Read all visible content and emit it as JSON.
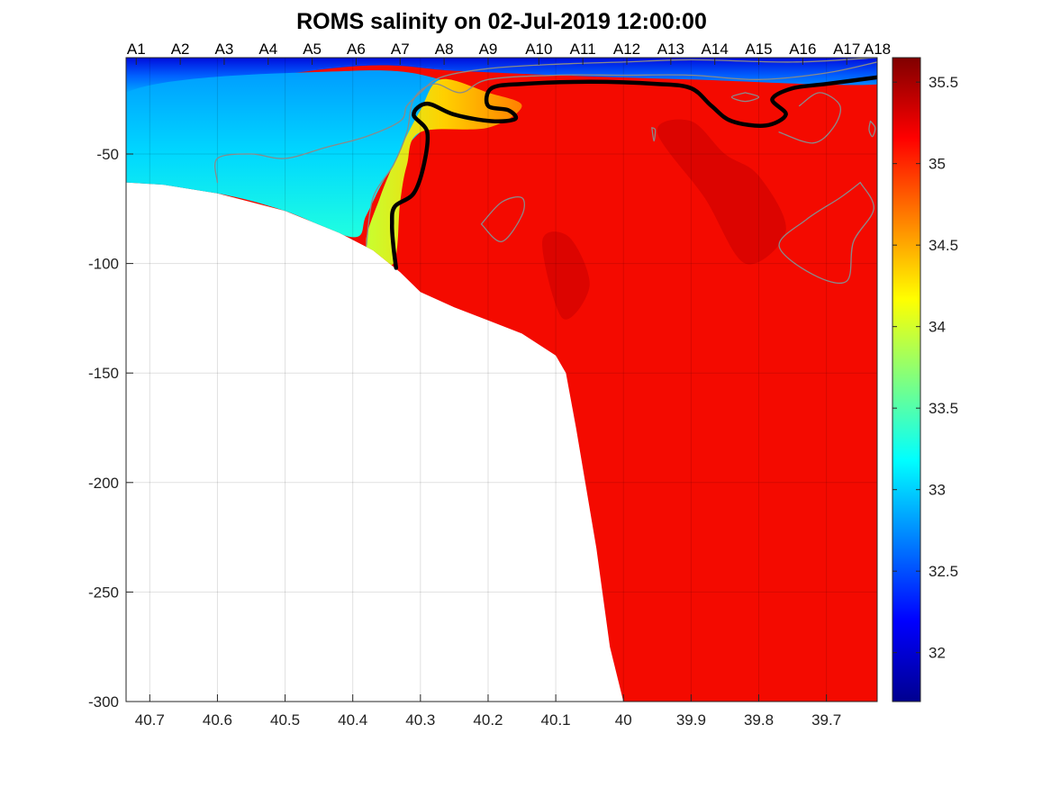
{
  "chart_data": {
    "type": "heatmap",
    "title": "ROMS salinity on 02-Jul-2019 12:00:00",
    "xlabel": "",
    "ylabel": "",
    "x_axis": {
      "min": 39.625,
      "max": 40.735,
      "reversed": true,
      "ticks": [
        40.7,
        40.6,
        40.5,
        40.4,
        40.3,
        40.2,
        40.1,
        40,
        39.9,
        39.8,
        39.7
      ],
      "tick_labels": [
        "40.7",
        "40.6",
        "40.5",
        "40.4",
        "40.3",
        "40.2",
        "40.1",
        "40",
        "39.9",
        "39.8",
        "39.7"
      ]
    },
    "y_axis": {
      "min": -300,
      "max": -6,
      "ticks": [
        -50,
        -100,
        -150,
        -200,
        -250,
        -300
      ],
      "tick_labels": [
        "-50",
        "-100",
        "-150",
        "-200",
        "-250",
        "-300"
      ]
    },
    "top_axis": {
      "labels": [
        "A1",
        "A2",
        "A3",
        "A4",
        "A5",
        "A6",
        "A7",
        "A8",
        "A9",
        "A10",
        "A11",
        "A12",
        "A13",
        "A14",
        "A15",
        "A16",
        "A17",
        "A18"
      ],
      "positions": [
        40.72,
        40.655,
        40.59,
        40.525,
        40.46,
        40.395,
        40.33,
        40.265,
        40.2,
        40.125,
        40.06,
        39.995,
        39.93,
        39.865,
        39.8,
        39.735,
        39.67,
        39.625
      ]
    },
    "colorbar": {
      "colormap": "jet",
      "min": 31.7,
      "max": 35.65,
      "ticks": [
        32,
        32.5,
        33,
        33.5,
        34,
        34.5,
        35,
        35.5
      ],
      "tick_labels": [
        "32",
        "32.5",
        "33",
        "33.5",
        "34",
        "34.5",
        "35",
        "35.5"
      ]
    },
    "grid": true,
    "bathymetry": [
      [
        40.735,
        -63
      ],
      [
        40.68,
        -64
      ],
      [
        40.6,
        -68
      ],
      [
        40.5,
        -76
      ],
      [
        40.42,
        -86
      ],
      [
        40.37,
        -94
      ],
      [
        40.33,
        -104
      ],
      [
        40.3,
        -113
      ],
      [
        40.25,
        -120
      ],
      [
        40.2,
        -126
      ],
      [
        40.15,
        -132
      ],
      [
        40.1,
        -142
      ],
      [
        40.085,
        -150
      ],
      [
        40.07,
        -175
      ],
      [
        40.04,
        -230
      ],
      [
        40.02,
        -275
      ],
      [
        40.0,
        -300
      ]
    ],
    "salinity_zones": [
      {
        "name": "fresh-surface",
        "salinity": 31.8,
        "outline": [
          [
            40.735,
            -6
          ],
          [
            40.0,
            -6
          ],
          [
            39.62,
            -6
          ],
          [
            39.62,
            -18
          ],
          [
            39.9,
            -16
          ],
          [
            40.1,
            -14
          ],
          [
            40.25,
            -12
          ],
          [
            40.4,
            -10
          ],
          [
            40.735,
            -22
          ]
        ]
      },
      {
        "name": "mid-layer",
        "salinity": 32.9,
        "outline": [
          [
            40.735,
            -22
          ],
          [
            40.4,
            -12
          ],
          [
            40.27,
            -16
          ],
          [
            40.22,
            -26
          ],
          [
            40.3,
            -40
          ],
          [
            40.35,
            -60
          ],
          [
            40.38,
            -78
          ],
          [
            40.4,
            -88
          ],
          [
            40.5,
            -76
          ],
          [
            40.6,
            -68
          ],
          [
            40.735,
            -63
          ]
        ]
      },
      {
        "name": "front",
        "salinity": 34.3,
        "outline": [
          [
            40.27,
            -16
          ],
          [
            40.2,
            -22
          ],
          [
            40.15,
            -28
          ],
          [
            40.2,
            -38
          ],
          [
            40.3,
            -40
          ],
          [
            40.32,
            -55
          ],
          [
            40.33,
            -72
          ],
          [
            40.34,
            -100
          ],
          [
            40.38,
            -92
          ],
          [
            40.36,
            -70
          ],
          [
            40.33,
            -48
          ],
          [
            40.3,
            -30
          ]
        ]
      },
      {
        "name": "saline-core",
        "salinity": 35.3
      },
      {
        "name": "max-patch",
        "salinity": 35.55,
        "outline": [
          [
            39.95,
            -40
          ],
          [
            39.9,
            -35
          ],
          [
            39.85,
            -50
          ],
          [
            39.8,
            -60
          ],
          [
            39.76,
            -85
          ],
          [
            39.82,
            -100
          ],
          [
            39.88,
            -70
          ]
        ]
      },
      {
        "name": "max-patch",
        "salinity": 35.55,
        "outline": [
          [
            40.12,
            -90
          ],
          [
            40.08,
            -88
          ],
          [
            40.05,
            -110
          ],
          [
            40.09,
            -125
          ]
        ]
      }
    ],
    "contours": [
      {
        "level": 35,
        "style": "thick-black",
        "points": [
          [
            40.336,
            -102
          ],
          [
            40.34,
            -92
          ],
          [
            40.342,
            -82
          ],
          [
            40.338,
            -74
          ],
          [
            40.31,
            -68
          ],
          [
            40.295,
            -55
          ],
          [
            40.29,
            -40
          ],
          [
            40.31,
            -32
          ],
          [
            40.29,
            -27
          ],
          [
            40.25,
            -32
          ],
          [
            40.195,
            -35
          ],
          [
            40.16,
            -34
          ],
          [
            40.17,
            -30
          ],
          [
            40.2,
            -28
          ],
          [
            40.195,
            -20
          ],
          [
            40.15,
            -18
          ],
          [
            40.05,
            -17
          ],
          [
            39.95,
            -18
          ],
          [
            39.9,
            -20
          ],
          [
            39.87,
            -28
          ],
          [
            39.84,
            -35
          ],
          [
            39.79,
            -37
          ],
          [
            39.76,
            -32
          ],
          [
            39.78,
            -25
          ],
          [
            39.75,
            -20
          ],
          [
            39.7,
            -18
          ],
          [
            39.625,
            -15
          ]
        ]
      },
      {
        "level": 34.5,
        "style": "thin-gray",
        "points": [
          [
            40.38,
            -92
          ],
          [
            40.37,
            -70
          ],
          [
            40.34,
            -55
          ],
          [
            40.32,
            -40
          ],
          [
            40.31,
            -25
          ],
          [
            40.28,
            -18
          ],
          [
            40.24,
            -22
          ],
          [
            40.2,
            -16
          ],
          [
            40.1,
            -14
          ],
          [
            40.0,
            -14
          ],
          [
            39.9,
            -14
          ],
          [
            39.8,
            -16
          ],
          [
            39.7,
            -13
          ],
          [
            39.625,
            -8
          ]
        ]
      },
      {
        "level": 33.5,
        "style": "thin-gray",
        "points": [
          [
            40.6,
            -63
          ],
          [
            40.6,
            -52
          ],
          [
            40.55,
            -50
          ],
          [
            40.5,
            -52
          ],
          [
            40.44,
            -47
          ],
          [
            40.38,
            -42
          ],
          [
            40.33,
            -35
          ],
          [
            40.32,
            -28
          ],
          [
            40.3,
            -22
          ],
          [
            40.27,
            -15
          ],
          [
            40.2,
            -11
          ],
          [
            40.1,
            -9
          ],
          [
            40.0,
            -8
          ],
          [
            39.9,
            -7
          ],
          [
            39.75,
            -8
          ],
          [
            39.625,
            -6
          ]
        ]
      },
      {
        "level": 35.5,
        "style": "thin-gray",
        "points": [
          [
            40.21,
            -82
          ],
          [
            40.18,
            -72
          ],
          [
            40.15,
            -70
          ],
          [
            40.15,
            -78
          ],
          [
            40.18,
            -90
          ],
          [
            40.21,
            -82
          ]
        ]
      },
      {
        "level": 35.5,
        "style": "thin-gray",
        "points": [
          [
            39.65,
            -63
          ],
          [
            39.68,
            -70
          ],
          [
            39.73,
            -80
          ],
          [
            39.77,
            -92
          ],
          [
            39.72,
            -105
          ],
          [
            39.67,
            -108
          ],
          [
            39.66,
            -90
          ],
          [
            39.63,
            -75
          ],
          [
            39.65,
            -63
          ]
        ]
      },
      {
        "level": 35.5,
        "style": "thin-gray",
        "points": [
          [
            39.77,
            -40
          ],
          [
            39.72,
            -45
          ],
          [
            39.69,
            -38
          ],
          [
            39.68,
            -28
          ],
          [
            39.71,
            -22
          ],
          [
            39.74,
            -28
          ]
        ]
      },
      {
        "level": 34.5,
        "style": "thin-gray",
        "points": [
          [
            39.82,
            -22
          ],
          [
            39.84,
            -24
          ],
          [
            39.82,
            -26
          ],
          [
            39.8,
            -24
          ],
          [
            39.82,
            -22
          ]
        ]
      },
      {
        "level": 35.5,
        "style": "thin-gray",
        "points": [
          [
            39.958,
            -38
          ],
          [
            39.955,
            -44
          ],
          [
            39.953,
            -39
          ],
          [
            39.958,
            -38
          ]
        ]
      },
      {
        "level": 35.5,
        "style": "thin-gray",
        "points": [
          [
            39.635,
            -35
          ],
          [
            39.628,
            -38
          ],
          [
            39.632,
            -42
          ],
          [
            39.637,
            -39
          ],
          [
            39.635,
            -35
          ]
        ]
      }
    ]
  }
}
